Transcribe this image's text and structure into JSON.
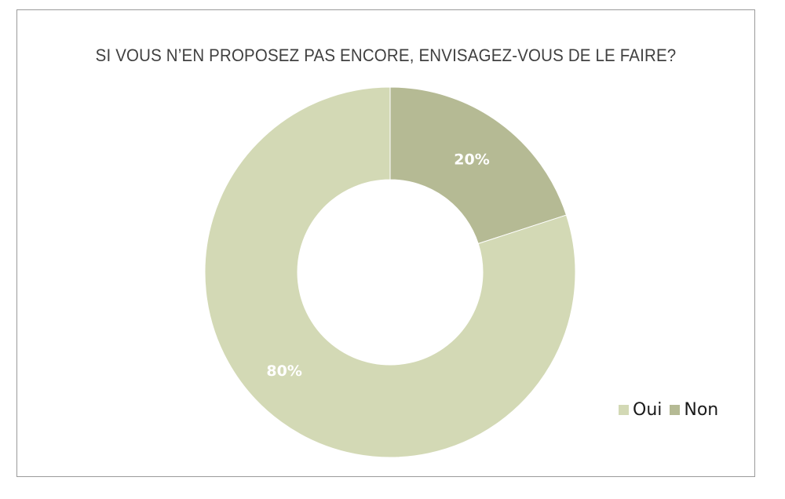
{
  "chart_data": {
    "type": "pie",
    "variant": "donut",
    "title": "SI VOUS N’EN PROPOSEZ PAS ENCORE, ENVISAGEZ-VOUS DE LE FAIRE?",
    "categories": [
      "Oui",
      "Non"
    ],
    "values": [
      80,
      20
    ],
    "labels": [
      "80%",
      "20%"
    ],
    "colors": [
      "#d3d9b5",
      "#b5ba94"
    ],
    "legend_position": "bottom-right"
  }
}
